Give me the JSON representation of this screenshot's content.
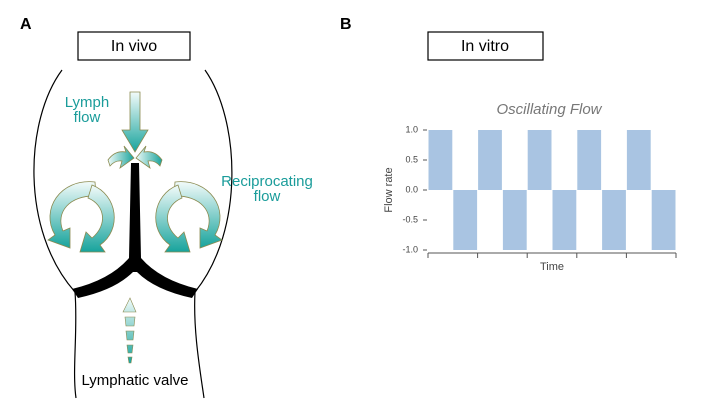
{
  "panel_a": {
    "letter": "A",
    "box_label": "In vivo",
    "lymph_flow": [
      "Lymph",
      "flow"
    ],
    "reciprocating_flow": [
      "Reciprocating",
      "flow"
    ],
    "caption": "Lymphatic valve"
  },
  "panel_b": {
    "letter": "B",
    "box_label": "In vitro"
  },
  "chart_data": {
    "type": "bar",
    "title": "Oscillating Flow",
    "ylabel": "Flow rate",
    "xlabel": "Time",
    "categories": [
      null,
      null,
      null,
      null,
      null,
      null,
      null,
      null,
      null,
      null
    ],
    "values": [
      1,
      -1,
      1,
      -1,
      1,
      -1,
      1,
      -1,
      1,
      -1
    ],
    "color": "#a9c4e2",
    "ylim": [
      -1,
      1
    ],
    "yticks": [
      {
        "value": -1,
        "label": "-1.0"
      },
      {
        "value": -0.5,
        "label": "-0.5"
      },
      {
        "value": 0,
        "label": "0.0"
      },
      {
        "value": 0.5,
        "label": "0.5"
      },
      {
        "value": 1,
        "label": "1.0"
      }
    ]
  }
}
